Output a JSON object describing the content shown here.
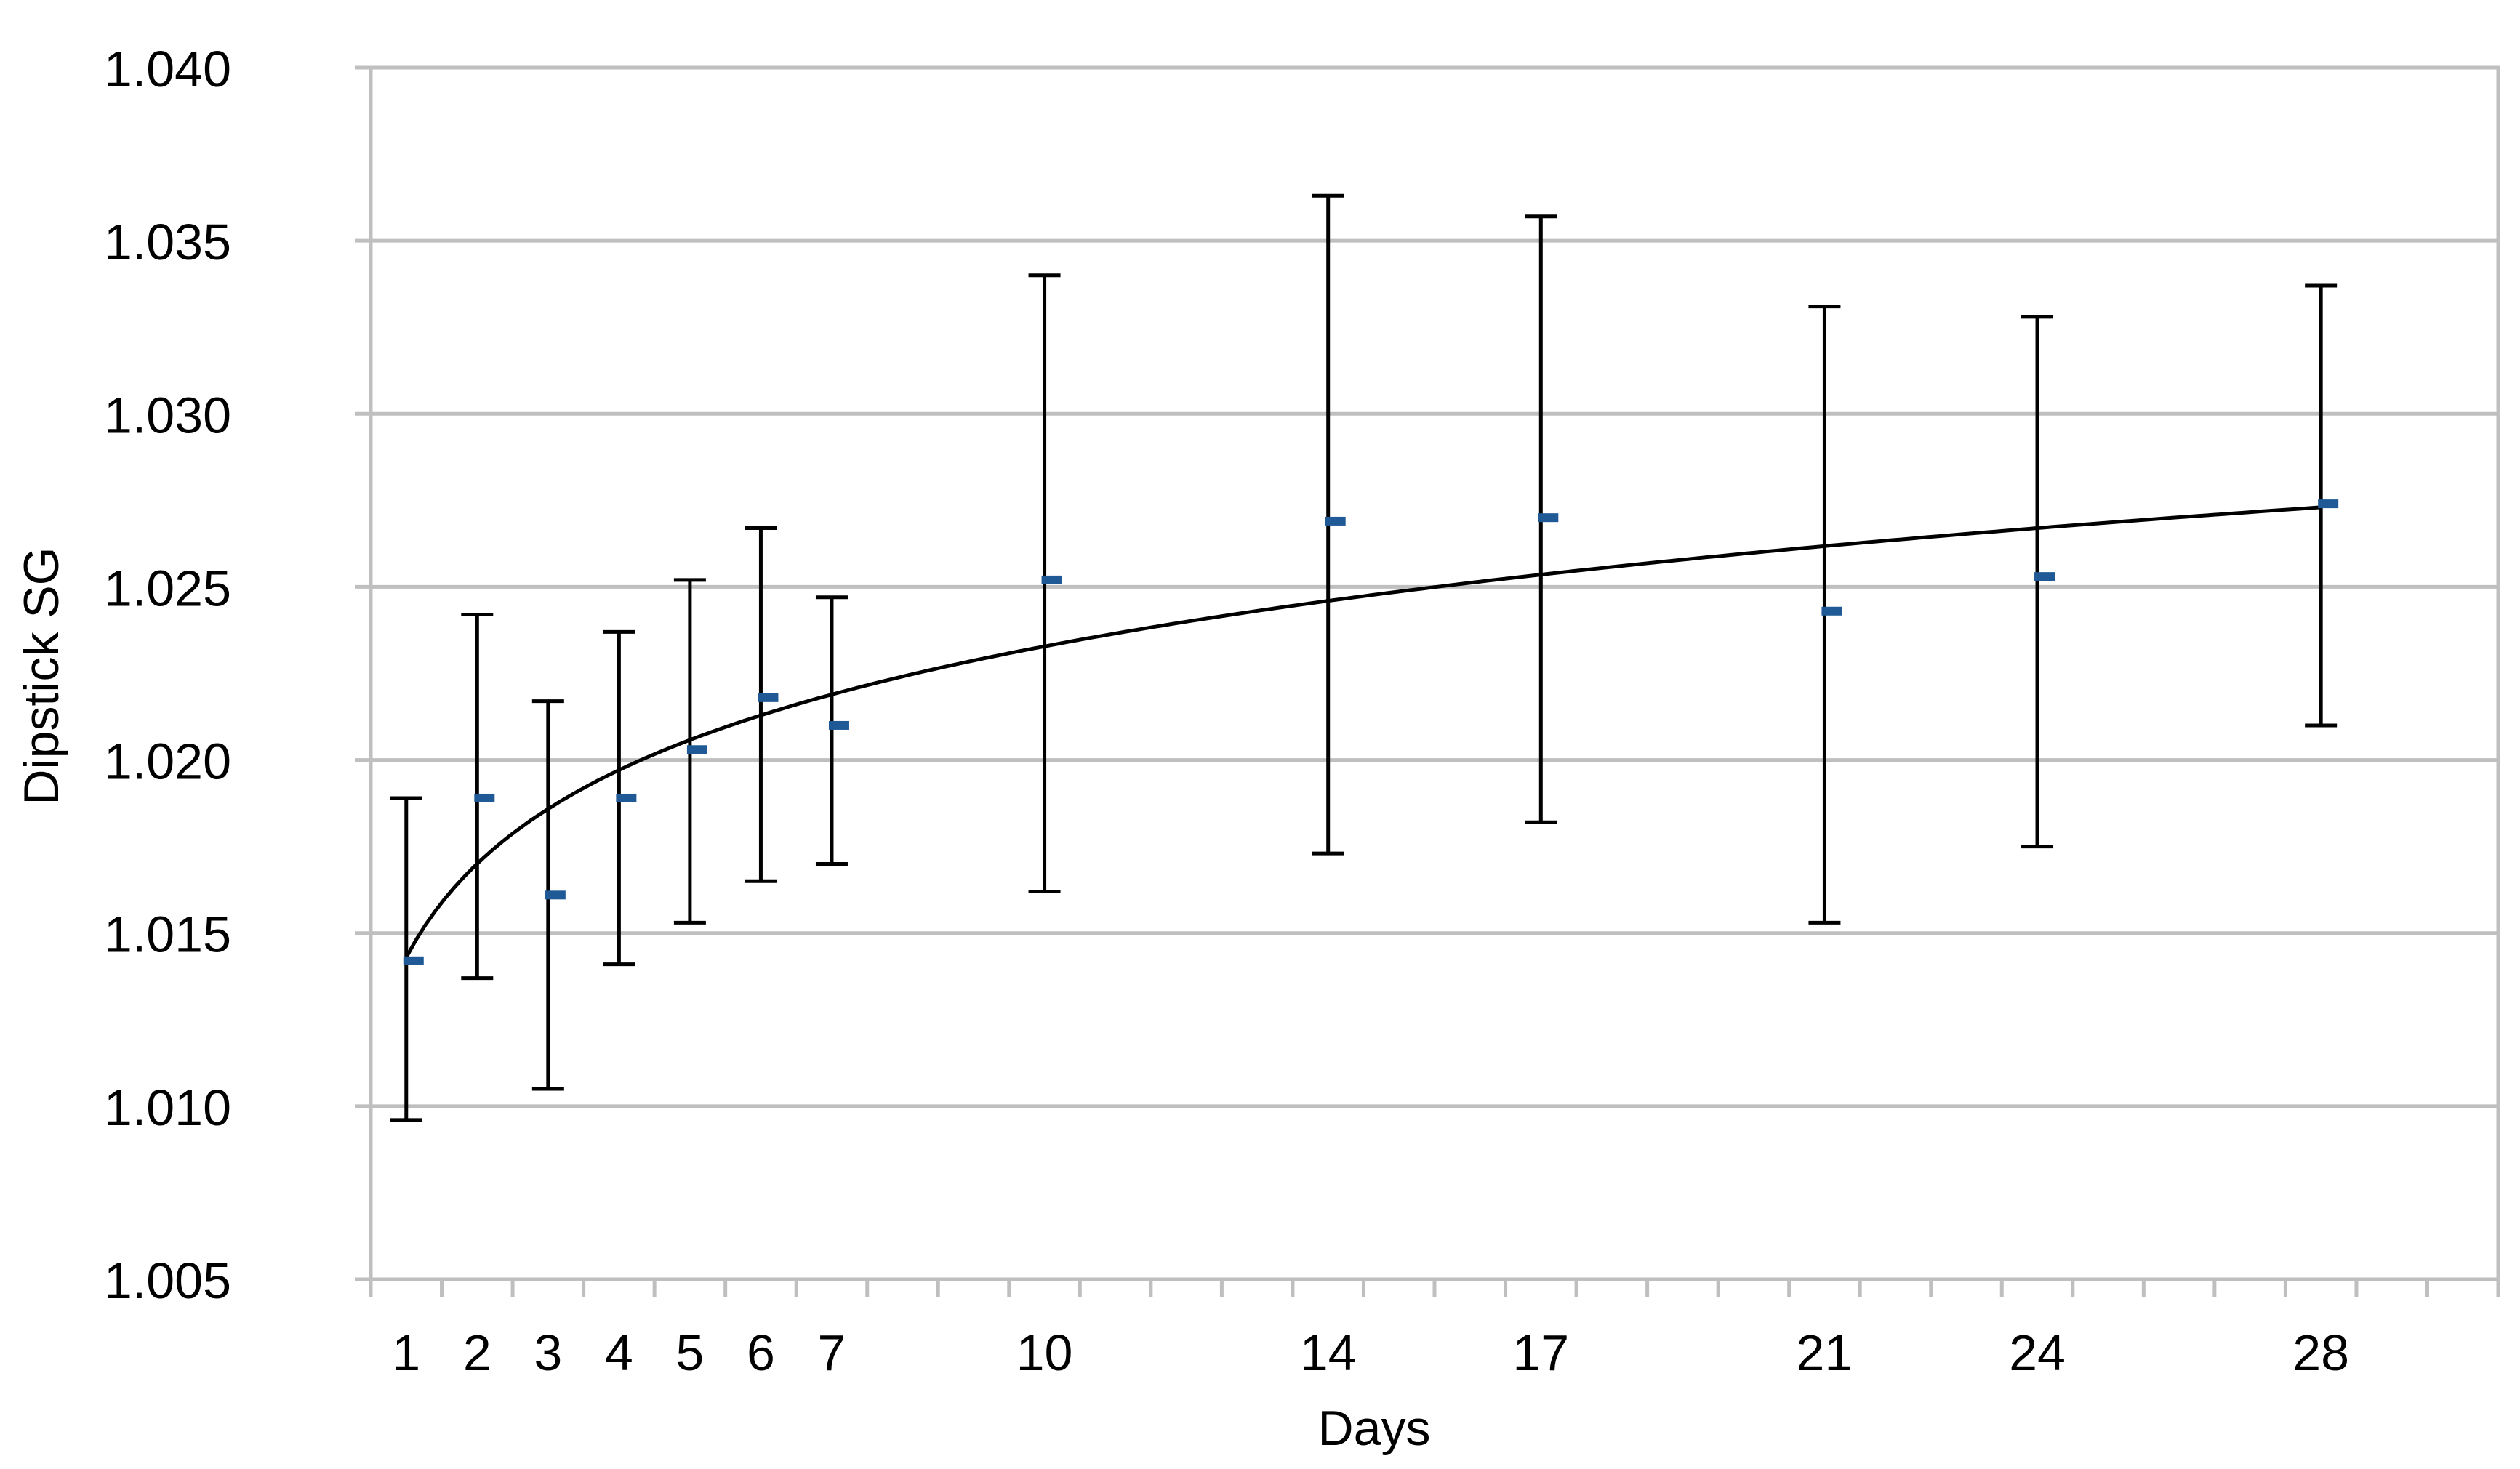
{
  "chart_data": {
    "type": "scatter",
    "title": "",
    "xlabel": "Days",
    "ylabel": "Dipstick SG",
    "ylim": [
      1.005,
      1.04
    ],
    "yticks": [
      "1.005",
      "1.010",
      "1.015",
      "1.020",
      "1.025",
      "1.030",
      "1.035",
      "1.040"
    ],
    "x_tick_labels": [
      "1",
      "2",
      "3",
      "4",
      "5",
      "6",
      "7",
      "10",
      "14",
      "17",
      "21",
      "24",
      "28"
    ],
    "grid": "horizontal",
    "legend": "none",
    "marker": "dash",
    "colors": {
      "points": "#1f5a96",
      "errorbars": "#000000",
      "trendline": "#000000",
      "grid": "#bfbfbf"
    },
    "series": [
      {
        "x": [
          1,
          2,
          3,
          4,
          5,
          6,
          7,
          10,
          14,
          17,
          21,
          24,
          28
        ],
        "mean": [
          1.0142,
          1.0189,
          1.0161,
          1.0189,
          1.0203,
          1.0218,
          1.021,
          1.0252,
          1.0269,
          1.027,
          1.0243,
          1.0253,
          1.0274
        ],
        "err_low": [
          1.0096,
          1.0137,
          1.0105,
          1.0141,
          1.0153,
          1.0165,
          1.017,
          1.0162,
          1.0173,
          1.0182,
          1.0153,
          1.0175,
          1.021
        ],
        "err_high": [
          1.0189,
          1.0242,
          1.0217,
          1.0237,
          1.0252,
          1.0267,
          1.0247,
          1.034,
          1.0363,
          1.0357,
          1.0331,
          1.0328,
          1.0337
        ]
      }
    ],
    "trendline": {
      "type": "logarithmic",
      "x_from": 1,
      "x_to": 28,
      "y_at_start": 1.0143,
      "y_at_end": 1.0273
    }
  }
}
